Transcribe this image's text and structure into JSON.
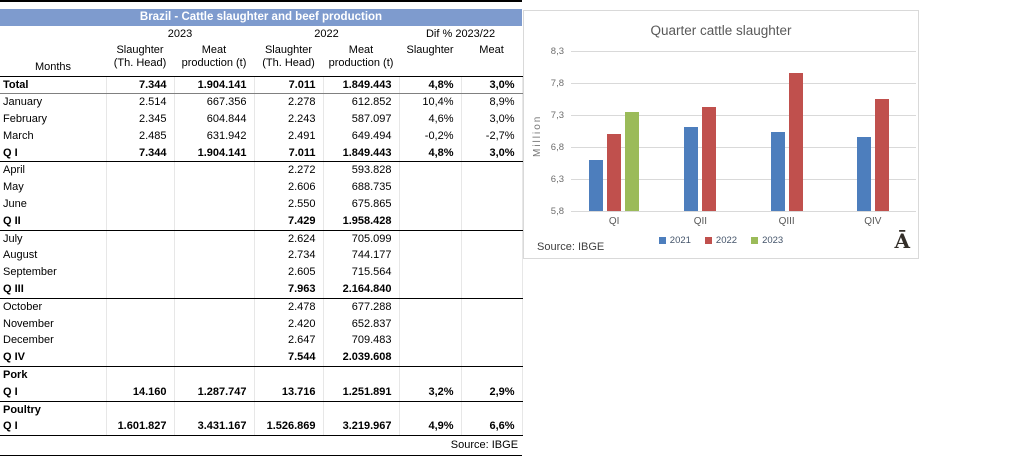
{
  "colors": {
    "title_bar_blue": "#7e9bce",
    "grid_gray": "#d9d9d9",
    "section_line_black": "#000000",
    "total_line_gray": "#808080"
  },
  "table": {
    "title": "Brazil - Cattle slaughter and beef production",
    "months_label": "Months",
    "col_groups": [
      {
        "label": "2023"
      },
      {
        "label": "2022"
      },
      {
        "label": "Dif % 2023/22"
      }
    ],
    "col_headers": [
      {
        "line1": "Slaughter",
        "line2": "(Th. Head)"
      },
      {
        "line1": "Meat",
        "line2": "production (t)"
      },
      {
        "line1": "Slaughter",
        "line2": "(Th. Head)"
      },
      {
        "line1": "Meat",
        "line2": "production (t)"
      },
      {
        "line1": "Slaughter",
        "line2": ""
      },
      {
        "line1": "Meat",
        "line2": ""
      }
    ],
    "rows": [
      {
        "label": "Total",
        "bold": true,
        "border_bottom": "gray",
        "cells": [
          "7.344",
          "1.904.141",
          "7.011",
          "1.849.443",
          "4,8%",
          "3,0%"
        ]
      },
      {
        "label": "January",
        "bold": false,
        "border_bottom": "none",
        "cells": [
          "2.514",
          "667.356",
          "2.278",
          "612.852",
          "10,4%",
          "8,9%"
        ]
      },
      {
        "label": "February",
        "bold": false,
        "border_bottom": "none",
        "cells": [
          "2.345",
          "604.844",
          "2.243",
          "587.097",
          "4,6%",
          "3,0%"
        ]
      },
      {
        "label": "March",
        "bold": false,
        "border_bottom": "none",
        "cells": [
          "2.485",
          "631.942",
          "2.491",
          "649.494",
          "-0,2%",
          "-2,7%"
        ]
      },
      {
        "label": "Q I",
        "bold": true,
        "border_bottom": "black",
        "cells": [
          "7.344",
          "1.904.141",
          "7.011",
          "1.849.443",
          "4,8%",
          "3,0%"
        ]
      },
      {
        "label": "April",
        "bold": false,
        "border_bottom": "none",
        "cells": [
          "",
          "",
          "2.272",
          "593.828",
          "",
          ""
        ]
      },
      {
        "label": "May",
        "bold": false,
        "border_bottom": "none",
        "cells": [
          "",
          "",
          "2.606",
          "688.735",
          "",
          ""
        ]
      },
      {
        "label": "June",
        "bold": false,
        "border_bottom": "none",
        "cells": [
          "",
          "",
          "2.550",
          "675.865",
          "",
          ""
        ]
      },
      {
        "label": "Q II",
        "bold": true,
        "border_bottom": "black",
        "cells": [
          "",
          "",
          "7.429",
          "1.958.428",
          "",
          ""
        ]
      },
      {
        "label": "July",
        "bold": false,
        "border_bottom": "none",
        "cells": [
          "",
          "",
          "2.624",
          "705.099",
          "",
          ""
        ]
      },
      {
        "label": "August",
        "bold": false,
        "border_bottom": "none",
        "cells": [
          "",
          "",
          "2.734",
          "744.177",
          "",
          ""
        ]
      },
      {
        "label": "September",
        "bold": false,
        "border_bottom": "none",
        "cells": [
          "",
          "",
          "2.605",
          "715.564",
          "",
          ""
        ]
      },
      {
        "label": "Q III",
        "bold": true,
        "border_bottom": "black",
        "cells": [
          "",
          "",
          "7.963",
          "2.164.840",
          "",
          ""
        ]
      },
      {
        "label": "October",
        "bold": false,
        "border_bottom": "none",
        "cells": [
          "",
          "",
          "2.478",
          "677.288",
          "",
          ""
        ]
      },
      {
        "label": "November",
        "bold": false,
        "border_bottom": "none",
        "cells": [
          "",
          "",
          "2.420",
          "652.837",
          "",
          ""
        ]
      },
      {
        "label": "December",
        "bold": false,
        "border_bottom": "none",
        "cells": [
          "",
          "",
          "2.647",
          "709.483",
          "",
          ""
        ]
      },
      {
        "label": "Q IV",
        "bold": true,
        "border_bottom": "black",
        "cells": [
          "",
          "",
          "7.544",
          "2.039.608",
          "",
          ""
        ]
      },
      {
        "label": "Pork",
        "bold": true,
        "border_bottom": "none",
        "cells": [
          "",
          "",
          "",
          "",
          "",
          ""
        ]
      },
      {
        "label": "Q I",
        "bold": true,
        "border_bottom": "black",
        "cells": [
          "14.160",
          "1.287.747",
          "13.716",
          "1.251.891",
          "3,2%",
          "2,9%"
        ]
      },
      {
        "label": "Poultry",
        "bold": true,
        "border_bottom": "none",
        "cells": [
          "",
          "",
          "",
          "",
          "",
          ""
        ]
      },
      {
        "label": "Q I",
        "bold": true,
        "border_bottom": "black",
        "cells": [
          "1.601.827",
          "3.431.167",
          "1.526.869",
          "3.219.967",
          "4,9%",
          "6,6%"
        ]
      }
    ],
    "source": "Source: IBGE"
  },
  "chart_data": {
    "type": "bar",
    "title": "Quarter cattle slaughter",
    "xlabel": "",
    "ylabel": "Million",
    "categories": [
      "QI",
      "QII",
      "QIII",
      "QIV"
    ],
    "series": [
      {
        "name": "2021",
        "color": "#4d7ebd",
        "values": [
          6.6,
          7.12,
          7.03,
          6.96
        ]
      },
      {
        "name": "2022",
        "color": "#c0504d",
        "values": [
          7.011,
          7.429,
          7.963,
          7.544
        ]
      },
      {
        "name": "2023",
        "color": "#9bbb59",
        "values": [
          7.344,
          null,
          null,
          null
        ]
      }
    ],
    "ylim": [
      5.8,
      8.3
    ],
    "yticks": [
      {
        "value": 5.8,
        "label": "5,8"
      },
      {
        "value": 6.3,
        "label": "6,3"
      },
      {
        "value": 6.8,
        "label": "6,8"
      },
      {
        "value": 7.3,
        "label": "7,3"
      },
      {
        "value": 7.8,
        "label": "7,8"
      },
      {
        "value": 8.3,
        "label": "8,3"
      }
    ],
    "grid": true,
    "legend_position": "bottom",
    "source": "Source: IBGE",
    "corner_glyph": "Ā"
  }
}
